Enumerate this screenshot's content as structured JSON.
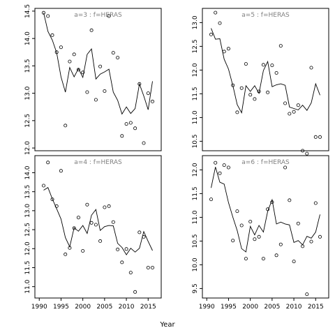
{
  "figure": {
    "xlabel": "Year"
  },
  "chart_data": [
    {
      "type": "scatter",
      "title": "a=3 : f=HERAS",
      "xlim": [
        1989,
        2018
      ],
      "ylim": [
        11.95,
        14.55
      ],
      "xticks": [],
      "yticks": [
        12.0,
        12.5,
        13.0,
        13.5,
        14.0,
        14.5
      ],
      "series": [
        {
          "kind": "points",
          "x": [
            1991,
            1992,
            1993,
            1994,
            1995,
            1996,
            1997,
            1998,
            1999,
            2000,
            2001,
            2002,
            2003,
            2004,
            2005,
            2006,
            2007,
            2008,
            2009,
            2010,
            2011,
            2012,
            2013,
            2014,
            2015,
            2016
          ],
          "y": [
            14.47,
            14.41,
            14.06,
            13.75,
            13.84,
            12.41,
            13.58,
            13.71,
            13.43,
            13.38,
            13.02,
            14.15,
            12.88,
            13.49,
            13.04,
            14.41,
            13.74,
            13.65,
            12.22,
            12.44,
            12.46,
            12.36,
            13.17,
            12.09,
            13.0,
            12.85
          ]
        },
        {
          "kind": "line",
          "x": [
            1991,
            1992,
            1993,
            1994,
            1995,
            1996,
            1997,
            1998,
            1999,
            2000,
            2001,
            2002,
            2003,
            2004,
            2005,
            2006,
            2007,
            2008,
            2009,
            2010,
            2011,
            2012,
            2013,
            2014,
            2015,
            2016
          ],
          "y": [
            14.47,
            14.13,
            13.97,
            13.74,
            13.3,
            13.02,
            13.47,
            13.3,
            13.45,
            13.29,
            13.71,
            13.81,
            13.26,
            13.35,
            13.39,
            13.44,
            13.02,
            12.87,
            12.62,
            12.75,
            12.63,
            12.72,
            13.17,
            12.95,
            12.7,
            13.22
          ]
        }
      ]
    },
    {
      "type": "scatter",
      "title": "a=5 : f=HERAS",
      "xlim": [
        1989,
        2018
      ],
      "ylim": [
        10.3,
        13.3
      ],
      "xticks": [],
      "yticks": [
        10.5,
        11.0,
        11.5,
        12.0,
        12.5,
        13.0
      ],
      "series": [
        {
          "kind": "points",
          "x": [
            1991,
            1992,
            1993,
            1994,
            1995,
            1996,
            1997,
            1998,
            1999,
            2000,
            2001,
            2002,
            2003,
            2004,
            2005,
            2006,
            2007,
            2008,
            2009,
            2010,
            2011,
            2012,
            2013,
            2014,
            2015,
            2016
          ],
          "y": [
            12.75,
            13.21,
            12.99,
            12.39,
            12.45,
            11.68,
            11.11,
            11.62,
            12.13,
            11.48,
            11.39,
            11.55,
            12.11,
            11.53,
            12.1,
            11.94,
            12.51,
            11.3,
            11.08,
            11.12,
            11.26,
            10.3,
            10.24,
            12.05,
            10.59,
            10.59
          ]
        },
        {
          "kind": "line",
          "x": [
            1991,
            1992,
            1993,
            1994,
            1995,
            1996,
            1997,
            1998,
            1999,
            2000,
            2001,
            2002,
            2003,
            2004,
            2005,
            2006,
            2007,
            2008,
            2009,
            2010,
            2011,
            2012,
            2013,
            2014,
            2015,
            2016
          ],
          "y": [
            12.88,
            12.65,
            12.66,
            12.23,
            12.02,
            11.67,
            11.27,
            11.1,
            11.67,
            11.55,
            11.67,
            11.51,
            11.99,
            12.18,
            11.65,
            11.69,
            11.71,
            11.68,
            11.22,
            11.19,
            11.16,
            11.26,
            11.15,
            11.31,
            11.71,
            11.47
          ]
        }
      ]
    },
    {
      "type": "scatter",
      "title": "a=4 : f=HERAS",
      "xlim": [
        1989,
        2018
      ],
      "ylim": [
        10.7,
        14.45
      ],
      "xticks": [
        1990,
        1995,
        2000,
        2005,
        2010,
        2015
      ],
      "yticks": [
        11.0,
        11.5,
        12.0,
        12.5,
        13.0,
        13.5,
        14.0
      ],
      "series": [
        {
          "kind": "points",
          "x": [
            1991,
            1992,
            1993,
            1994,
            1995,
            1996,
            1997,
            1998,
            1999,
            2000,
            2001,
            2002,
            2003,
            2004,
            2005,
            2006,
            2007,
            2008,
            2009,
            2010,
            2011,
            2012,
            2013,
            2014,
            2015,
            2016
          ],
          "y": [
            13.66,
            14.27,
            13.3,
            13.12,
            14.05,
            11.85,
            12.02,
            12.54,
            12.82,
            11.94,
            13.16,
            12.68,
            12.63,
            12.2,
            13.09,
            13.12,
            12.7,
            11.98,
            11.64,
            11.99,
            11.37,
            10.86,
            12.43,
            12.31,
            11.5,
            11.5
          ]
        },
        {
          "kind": "line",
          "x": [
            1991,
            1992,
            1993,
            1994,
            1995,
            1996,
            1997,
            1998,
            1999,
            2000,
            2001,
            2002,
            2003,
            2004,
            2005,
            2006,
            2007,
            2008,
            2009,
            2010,
            2011,
            2012,
            2013,
            2014,
            2015,
            2016
          ],
          "y": [
            13.54,
            13.61,
            13.31,
            13.05,
            12.78,
            12.29,
            12.05,
            12.55,
            12.46,
            12.61,
            12.4,
            12.88,
            13.03,
            12.48,
            12.58,
            12.61,
            12.6,
            12.14,
            12.03,
            11.84,
            12.01,
            11.91,
            12.01,
            12.45,
            12.19,
            11.95
          ]
        }
      ]
    },
    {
      "type": "scatter",
      "title": "a=6 : f=HERAS",
      "xlim": [
        1989,
        2018
      ],
      "ylim": [
        9.3,
        12.3
      ],
      "xticks": [
        1990,
        1995,
        2000,
        2005,
        2010,
        2015
      ],
      "yticks": [
        9.5,
        10.0,
        10.5,
        11.0,
        11.5,
        12.0
      ],
      "series": [
        {
          "kind": "points",
          "x": [
            1991,
            1992,
            1993,
            1994,
            1995,
            1996,
            1997,
            1998,
            1999,
            2000,
            2001,
            2002,
            2003,
            2004,
            2005,
            2006,
            2007,
            2008,
            2009,
            2010,
            2011,
            2012,
            2013,
            2014,
            2015,
            2016
          ],
          "y": [
            11.38,
            12.15,
            11.93,
            12.1,
            12.05,
            10.51,
            11.13,
            10.83,
            10.13,
            10.91,
            10.54,
            10.59,
            10.13,
            11.17,
            11.32,
            10.2,
            10.43,
            12.05,
            11.36,
            10.07,
            10.87,
            10.39,
            9.38,
            10.49,
            11.3,
            10.59
          ]
        },
        {
          "kind": "line",
          "x": [
            1991,
            1992,
            1993,
            1994,
            1995,
            1996,
            1997,
            1998,
            1999,
            2000,
            2001,
            2002,
            2003,
            2004,
            2005,
            2006,
            2007,
            2008,
            2009,
            2010,
            2011,
            2012,
            2013,
            2014,
            2015,
            2016
          ],
          "y": [
            11.62,
            12.06,
            11.74,
            11.7,
            11.31,
            11.0,
            10.72,
            10.34,
            10.27,
            10.81,
            10.63,
            10.83,
            10.69,
            11.13,
            11.37,
            10.86,
            10.9,
            10.86,
            10.84,
            10.47,
            10.51,
            10.42,
            10.6,
            10.56,
            10.69,
            11.06
          ]
        }
      ]
    }
  ]
}
